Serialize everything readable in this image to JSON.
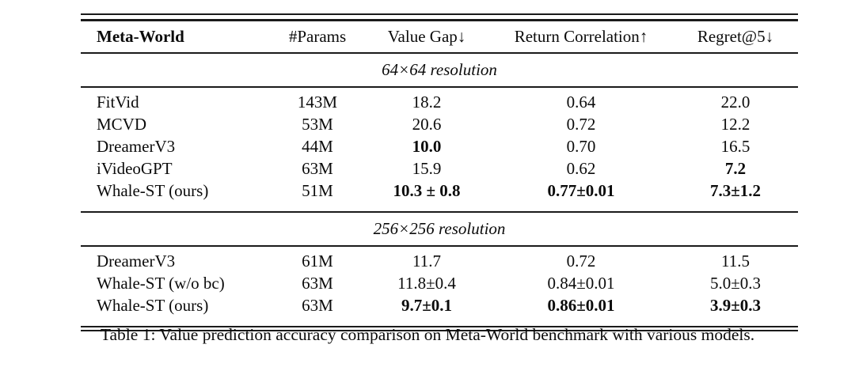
{
  "table": {
    "columns": [
      "Meta-World",
      "#Params",
      "Value Gap↓",
      "Return Correlation↑",
      "Regret@5↓"
    ],
    "sections": [
      {
        "label": "64×64 resolution",
        "rows": [
          {
            "cells": [
              {
                "text": "FitVid",
                "bold": false
              },
              {
                "text": "143M",
                "bold": false
              },
              {
                "text": "18.2",
                "bold": false
              },
              {
                "text": "0.64",
                "bold": false
              },
              {
                "text": "22.0",
                "bold": false
              }
            ]
          },
          {
            "cells": [
              {
                "text": "MCVD",
                "bold": false
              },
              {
                "text": "53M",
                "bold": false
              },
              {
                "text": "20.6",
                "bold": false
              },
              {
                "text": "0.72",
                "bold": false
              },
              {
                "text": "12.2",
                "bold": false
              }
            ]
          },
          {
            "cells": [
              {
                "text": "DreamerV3",
                "bold": false
              },
              {
                "text": "44M",
                "bold": false
              },
              {
                "text": "10.0",
                "bold": true
              },
              {
                "text": "0.70",
                "bold": false
              },
              {
                "text": "16.5",
                "bold": false
              }
            ]
          },
          {
            "cells": [
              {
                "text": "iVideoGPT",
                "bold": false
              },
              {
                "text": "63M",
                "bold": false
              },
              {
                "text": "15.9",
                "bold": false
              },
              {
                "text": "0.62",
                "bold": false
              },
              {
                "text": "7.2",
                "bold": true
              }
            ]
          },
          {
            "cells": [
              {
                "text": "Whale-ST (ours)",
                "bold": false
              },
              {
                "text": "51M",
                "bold": false
              },
              {
                "text": "10.3 ± 0.8",
                "bold": true
              },
              {
                "text": "0.77±0.01",
                "bold": true
              },
              {
                "text": "7.3±1.2",
                "bold": true
              }
            ]
          }
        ]
      },
      {
        "label": "256×256 resolution",
        "rows": [
          {
            "cells": [
              {
                "text": "DreamerV3",
                "bold": false
              },
              {
                "text": "61M",
                "bold": false
              },
              {
                "text": "11.7",
                "bold": false
              },
              {
                "text": "0.72",
                "bold": false
              },
              {
                "text": "11.5",
                "bold": false
              }
            ]
          },
          {
            "cells": [
              {
                "text": "Whale-ST (w/o bc)",
                "bold": false
              },
              {
                "text": "63M",
                "bold": false
              },
              {
                "text": "11.8±0.4",
                "bold": false
              },
              {
                "text": "0.84±0.01",
                "bold": false
              },
              {
                "text": "5.0±0.3",
                "bold": false
              }
            ]
          },
          {
            "cells": [
              {
                "text": "Whale-ST (ours)",
                "bold": false
              },
              {
                "text": "63M",
                "bold": false
              },
              {
                "text": "9.7±0.1",
                "bold": true
              },
              {
                "text": "0.86±0.01",
                "bold": true
              },
              {
                "text": "3.9±0.3",
                "bold": true
              }
            ]
          }
        ]
      }
    ]
  },
  "caption": "Table 1: Value prediction accuracy comparison on Meta-World benchmark with various models."
}
